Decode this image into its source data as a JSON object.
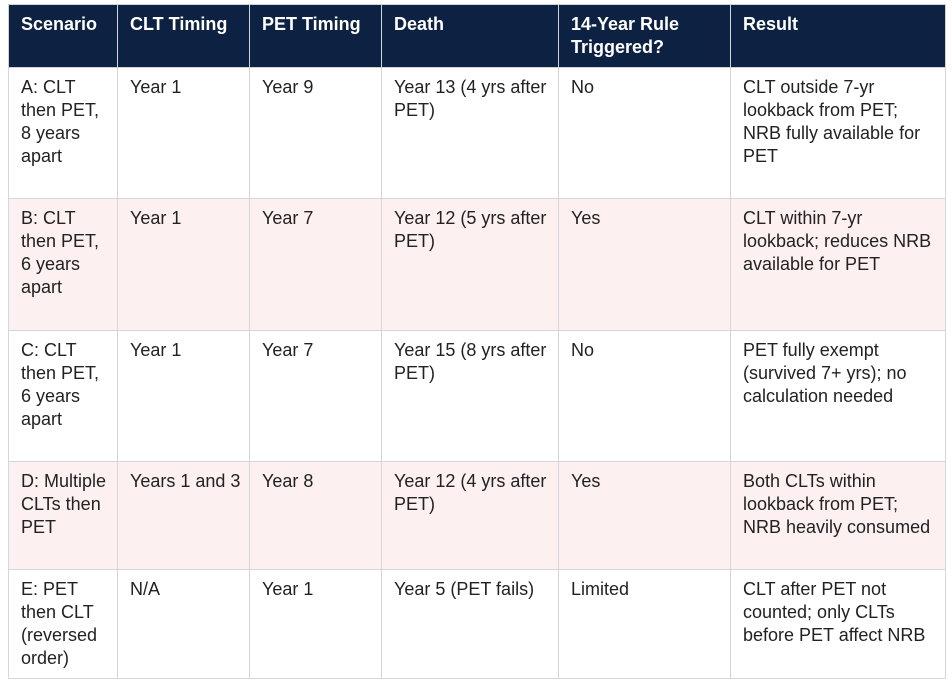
{
  "table": {
    "headers": [
      "Scenario",
      "CLT Timing",
      "PET Timing",
      "Death",
      "14-Year Rule Triggered?",
      "Result"
    ],
    "rows": [
      [
        "A: CLT then PET, 8 years apart",
        "Year 1",
        "Year 9",
        "Year 13 (4 yrs after PET)",
        "No",
        "CLT outside 7-yr lookback from PET; NRB fully available for PET"
      ],
      [
        "B: CLT then PET, 6 years apart",
        "Year 1",
        "Year 7",
        "Year 12 (5 yrs after PET)",
        "Yes",
        "CLT within 7-yr lookback; reduces NRB available for PET"
      ],
      [
        "C: CLT then PET, 6 years apart",
        "Year 1",
        "Year 7",
        "Year 15 (8 yrs after PET)",
        "No",
        "PET fully exempt (survived 7+ yrs); no calculation needed"
      ],
      [
        "D: Multiple CLTs then PET",
        "Years 1 and 3",
        "Year 8",
        "Year 12 (4 yrs after PET)",
        "Yes",
        "Both CLTs within lookback from PET; NRB heavily consumed"
      ],
      [
        "E: PET then CLT (reversed order)",
        "N/A",
        "Year 1",
        "Year 5 (PET fails)",
        "Limited",
        "CLT after PET not counted; only CLTs before PET affect NRB"
      ]
    ]
  },
  "colors": {
    "header_bg": "#0d2242",
    "header_text": "#ffffff",
    "row_alt_bg": "#fcf0f0",
    "border": "#d3d6da"
  }
}
